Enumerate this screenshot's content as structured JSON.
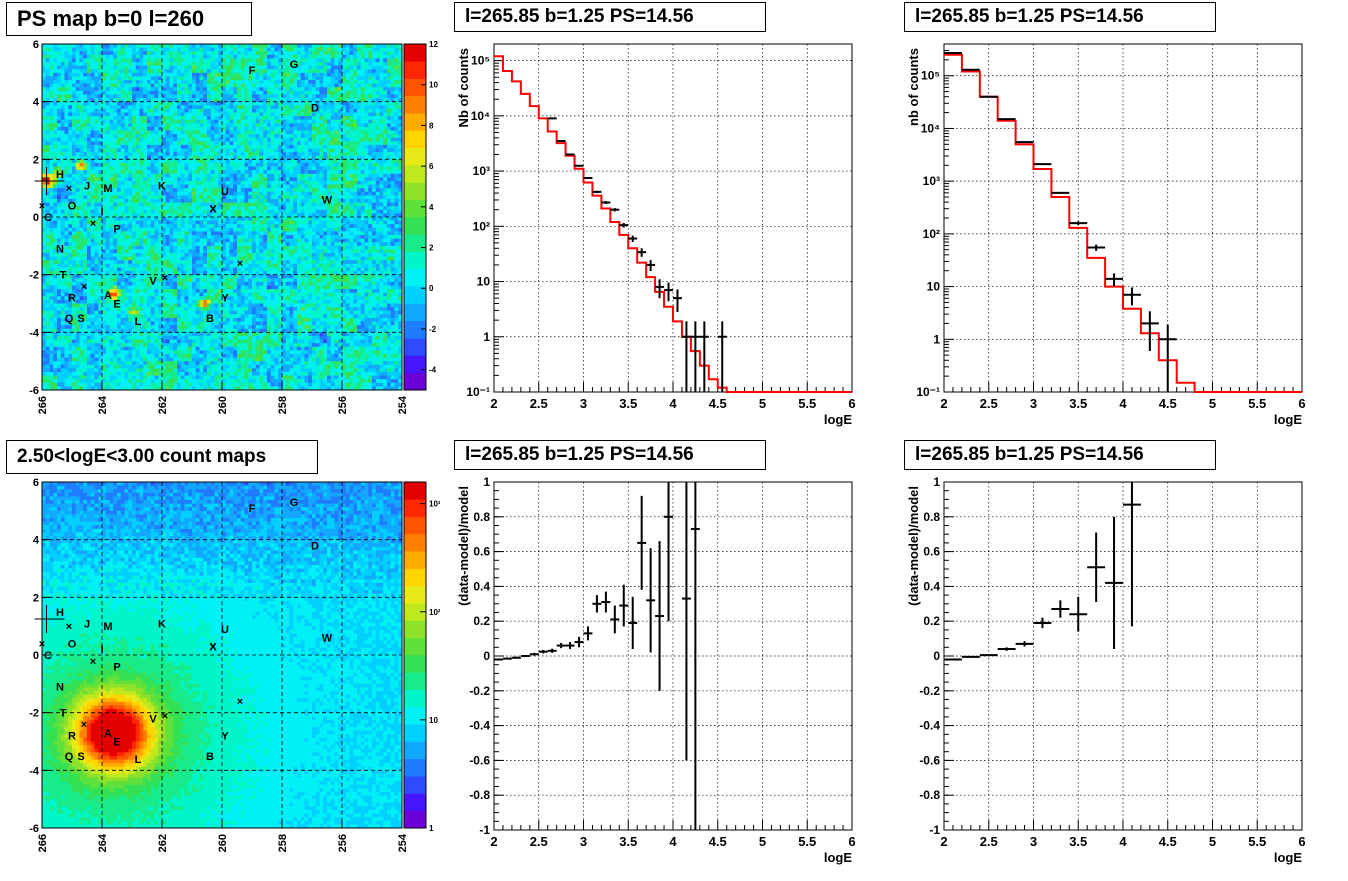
{
  "panels": {
    "ps_map": {
      "title": "PS map b=0 l=260"
    },
    "count_map": {
      "title": "2.50<logE<3.00 count maps"
    },
    "spec1": {
      "title": "l=265.85 b=1.25 PS=14.56"
    },
    "spec2": {
      "title": "l=265.85 b=1.25 PS=14.56"
    },
    "res1": {
      "title": "l=265.85 b=1.25 PS=14.56"
    },
    "res2": {
      "title": "l=265.85 b=1.25 PS=14.56"
    }
  },
  "colors": {
    "model": "#ff0000",
    "data": "#000000",
    "grid": "#000000"
  },
  "chart_data": [
    {
      "id": "ps_map",
      "type": "heatmap",
      "title": "PS map b=0 l=260",
      "xlim": [
        266,
        254
      ],
      "ylim": [
        -6,
        6
      ],
      "xticks": [
        "266",
        "264",
        "262",
        "260",
        "258",
        "256",
        "254"
      ],
      "yticks": [
        "-6",
        "-4",
        "-2",
        "0",
        "2",
        "4",
        "6"
      ],
      "zlim": [
        -5,
        12
      ],
      "zticks": [
        "-4",
        "-2",
        "0",
        "2",
        "4",
        "6",
        "8",
        "10",
        "12"
      ],
      "hotspots": [
        {
          "l": 265.85,
          "b": 1.25,
          "v": 12
        },
        {
          "l": 264.7,
          "b": 1.8,
          "v": 10
        },
        {
          "l": 263.6,
          "b": -2.7,
          "v": 10
        },
        {
          "l": 260.6,
          "b": -3.0,
          "v": 10
        },
        {
          "l": 262.9,
          "b": -3.3,
          "v": 7
        },
        {
          "l": 265.5,
          "b": 1.5,
          "v": 6
        }
      ],
      "sources": [
        {
          "name": "F",
          "l": 259.0,
          "b": 5.1
        },
        {
          "name": "G",
          "l": 257.6,
          "b": 5.3
        },
        {
          "name": "D",
          "l": 256.9,
          "b": 3.8
        },
        {
          "name": "H",
          "l": 265.4,
          "b": 1.5
        },
        {
          "name": "J",
          "l": 264.5,
          "b": 1.1
        },
        {
          "name": "M",
          "l": 263.8,
          "b": 1.0
        },
        {
          "name": "K",
          "l": 262.0,
          "b": 1.1
        },
        {
          "name": "U",
          "l": 259.9,
          "b": 0.9
        },
        {
          "name": "W",
          "l": 256.5,
          "b": 0.6
        },
        {
          "name": "O",
          "l": 265.0,
          "b": 0.4
        },
        {
          "name": "I",
          "l": 264.0,
          "b": 0.2
        },
        {
          "name": "X",
          "l": 260.3,
          "b": 0.3
        },
        {
          "name": "C",
          "l": 265.8,
          "b": 0.0
        },
        {
          "name": "P",
          "l": 263.5,
          "b": -0.4
        },
        {
          "name": "N",
          "l": 265.4,
          "b": -1.1
        },
        {
          "name": "T",
          "l": 265.3,
          "b": -2.0
        },
        {
          "name": "V",
          "l": 262.3,
          "b": -2.2
        },
        {
          "name": "R",
          "l": 265.0,
          "b": -2.8
        },
        {
          "name": "A",
          "l": 263.8,
          "b": -2.7
        },
        {
          "name": "Y",
          "l": 259.9,
          "b": -2.8
        },
        {
          "name": "E",
          "l": 263.5,
          "b": -3.0
        },
        {
          "name": "Q",
          "l": 265.1,
          "b": -3.5
        },
        {
          "name": "S",
          "l": 264.7,
          "b": -3.5
        },
        {
          "name": "L",
          "l": 262.8,
          "b": -3.6
        },
        {
          "name": "B",
          "l": 260.4,
          "b": -3.5
        }
      ],
      "markers": [
        {
          "l": 266.0,
          "b": 0.4
        },
        {
          "l": 265.1,
          "b": 1.0
        },
        {
          "l": 264.3,
          "b": -0.2
        },
        {
          "l": 264.6,
          "b": -2.4
        },
        {
          "l": 261.9,
          "b": -2.1
        },
        {
          "l": 260.3,
          "b": 0.3
        },
        {
          "l": 259.4,
          "b": -1.6
        }
      ],
      "crosshair": {
        "l": 265.85,
        "b": 1.25
      }
    },
    {
      "id": "count_map",
      "type": "heatmap",
      "title": "2.50<logE<3.00 count maps",
      "xlim": [
        266,
        254
      ],
      "ylim": [
        -6,
        6
      ],
      "xticks": [
        "266",
        "264",
        "262",
        "260",
        "258",
        "256",
        "254"
      ],
      "yticks": [
        "-6",
        "-4",
        "-2",
        "0",
        "2",
        "4",
        "6"
      ],
      "zscale": "log",
      "zticks": [
        "1",
        "10",
        "10²",
        "10³"
      ],
      "peak": {
        "l": 263.6,
        "b": -2.7
      },
      "sources": "same as PS map"
    },
    {
      "id": "spec1",
      "type": "line",
      "title": "l=265.85 b=1.25 PS=14.56",
      "xlabel": "logE",
      "ylabel": "Nb of counts",
      "yscale": "log",
      "xlim": [
        2,
        6
      ],
      "ylim": [
        0.1,
        200000
      ],
      "xticks": [
        "2",
        "2.5",
        "3",
        "3.5",
        "4",
        "4.5",
        "5",
        "5.5",
        "6"
      ],
      "yticks": [
        {
          "v": 0.1,
          "t": "10⁻¹"
        },
        {
          "v": 1,
          "t": "1"
        },
        {
          "v": 10,
          "t": "10"
        },
        {
          "v": 100,
          "t": "10²"
        },
        {
          "v": 1000,
          "t": "10³"
        },
        {
          "v": 10000,
          "t": "10⁴"
        },
        {
          "v": 100000,
          "t": "10⁵"
        }
      ],
      "bin_width": 0.1,
      "model": [
        {
          "x": 2.0,
          "y": 120000
        },
        {
          "x": 2.1,
          "y": 65000
        },
        {
          "x": 2.2,
          "y": 42000
        },
        {
          "x": 2.3,
          "y": 25000
        },
        {
          "x": 2.4,
          "y": 15000
        },
        {
          "x": 2.5,
          "y": 9000
        },
        {
          "x": 2.6,
          "y": 5200
        },
        {
          "x": 2.7,
          "y": 3200
        },
        {
          "x": 2.8,
          "y": 1900
        },
        {
          "x": 2.9,
          "y": 1100
        },
        {
          "x": 3.0,
          "y": 620
        },
        {
          "x": 3.1,
          "y": 360
        },
        {
          "x": 3.2,
          "y": 210
        },
        {
          "x": 3.3,
          "y": 120
        },
        {
          "x": 3.4,
          "y": 70
        },
        {
          "x": 3.5,
          "y": 40
        },
        {
          "x": 3.6,
          "y": 22
        },
        {
          "x": 3.7,
          "y": 12
        },
        {
          "x": 3.8,
          "y": 6.5
        },
        {
          "x": 3.9,
          "y": 3.5
        },
        {
          "x": 4.0,
          "y": 1.9
        },
        {
          "x": 4.1,
          "y": 1.0
        },
        {
          "x": 4.2,
          "y": 0.55
        },
        {
          "x": 4.3,
          "y": 0.3
        },
        {
          "x": 4.4,
          "y": 0.17
        },
        {
          "x": 4.5,
          "y": 0.12
        },
        {
          "x": 4.6,
          "y": 0.1
        },
        {
          "x": 4.7,
          "y": 0.1
        }
      ],
      "data": [
        {
          "x": 2.65,
          "y": 9000,
          "err": 100
        },
        {
          "x": 2.75,
          "y": 3500,
          "err": 60
        },
        {
          "x": 2.85,
          "y": 2000,
          "err": 45
        },
        {
          "x": 2.95,
          "y": 1250,
          "err": 35
        },
        {
          "x": 3.05,
          "y": 750,
          "err": 27
        },
        {
          "x": 3.15,
          "y": 420,
          "err": 20
        },
        {
          "x": 3.25,
          "y": 270,
          "err": 16
        },
        {
          "x": 3.35,
          "y": 200,
          "err": 14
        },
        {
          "x": 3.45,
          "y": 105,
          "err": 10
        },
        {
          "x": 3.55,
          "y": 60,
          "err": 8
        },
        {
          "x": 3.65,
          "y": 34,
          "err": 6
        },
        {
          "x": 3.75,
          "y": 20,
          "err": 4.5
        },
        {
          "x": 3.85,
          "y": 8,
          "err": 3
        },
        {
          "x": 3.95,
          "y": 7,
          "err": 2.6
        },
        {
          "x": 4.05,
          "y": 5,
          "err": 2.2
        },
        {
          "x": 4.15,
          "y": 1,
          "err": 0.9
        },
        {
          "x": 4.25,
          "y": 1,
          "err": 0.9
        },
        {
          "x": 4.35,
          "y": 1,
          "err": 0.9
        },
        {
          "x": 4.55,
          "y": 1,
          "err": 0.9
        }
      ]
    },
    {
      "id": "spec2",
      "type": "line",
      "title": "l=265.85 b=1.25 PS=14.56",
      "xlabel": "logE",
      "ylabel": "nb of counts",
      "yscale": "log",
      "xlim": [
        2,
        6
      ],
      "ylim": [
        0.1,
        400000
      ],
      "xticks": [
        "2",
        "2.5",
        "3",
        "3.5",
        "4",
        "4.5",
        "5",
        "5.5",
        "6"
      ],
      "yticks": [
        {
          "v": 0.1,
          "t": "10⁻¹"
        },
        {
          "v": 1,
          "t": "1"
        },
        {
          "v": 10,
          "t": "10"
        },
        {
          "v": 100,
          "t": "10²"
        },
        {
          "v": 1000,
          "t": "10³"
        },
        {
          "v": 10000,
          "t": "10⁴"
        },
        {
          "v": 100000,
          "t": "10⁵"
        }
      ],
      "bin_width": 0.2,
      "model": [
        {
          "x": 2.0,
          "y": 250000
        },
        {
          "x": 2.2,
          "y": 120000
        },
        {
          "x": 2.4,
          "y": 40000
        },
        {
          "x": 2.6,
          "y": 14000
        },
        {
          "x": 2.8,
          "y": 5000
        },
        {
          "x": 3.0,
          "y": 1700
        },
        {
          "x": 3.2,
          "y": 500
        },
        {
          "x": 3.4,
          "y": 130
        },
        {
          "x": 3.6,
          "y": 35
        },
        {
          "x": 3.8,
          "y": 10
        },
        {
          "x": 4.0,
          "y": 3.8
        },
        {
          "x": 4.2,
          "y": 1.3
        },
        {
          "x": 4.4,
          "y": 0.4
        },
        {
          "x": 4.6,
          "y": 0.15
        },
        {
          "x": 4.8,
          "y": 0.1
        },
        {
          "x": 5.0,
          "y": 0.1
        }
      ],
      "data": [
        {
          "x": 2.1,
          "y": 270000,
          "err": 500
        },
        {
          "x": 2.3,
          "y": 130000,
          "err": 360
        },
        {
          "x": 2.5,
          "y": 40000,
          "err": 200
        },
        {
          "x": 2.7,
          "y": 15000,
          "err": 120
        },
        {
          "x": 2.9,
          "y": 5500,
          "err": 75
        },
        {
          "x": 3.1,
          "y": 2100,
          "err": 46
        },
        {
          "x": 3.3,
          "y": 600,
          "err": 25
        },
        {
          "x": 3.5,
          "y": 160,
          "err": 13
        },
        {
          "x": 3.7,
          "y": 55,
          "err": 7.5
        },
        {
          "x": 3.9,
          "y": 14,
          "err": 3.8
        },
        {
          "x": 4.1,
          "y": 7,
          "err": 2.6
        },
        {
          "x": 4.3,
          "y": 2,
          "err": 1.4
        },
        {
          "x": 4.5,
          "y": 1,
          "err": 0.9
        }
      ]
    },
    {
      "id": "res1",
      "type": "scatter",
      "title": "l=265.85 b=1.25 PS=14.56",
      "xlabel": "logE",
      "ylabel": "(data-model)/model",
      "xlim": [
        2,
        6
      ],
      "ylim": [
        -1,
        1
      ],
      "xticks": [
        "2",
        "2.5",
        "3",
        "3.5",
        "4",
        "4.5",
        "5",
        "5.5",
        "6"
      ],
      "yticks": [
        "-1",
        "-0.8",
        "-0.6",
        "-0.4",
        "-0.2",
        "0",
        "0.2",
        "0.4",
        "0.6",
        "0.8",
        "1"
      ],
      "bin_width": 0.1,
      "data": [
        {
          "x": 2.05,
          "y": -0.02,
          "err": 0.005
        },
        {
          "x": 2.15,
          "y": -0.015,
          "err": 0.005
        },
        {
          "x": 2.25,
          "y": -0.01,
          "err": 0.005
        },
        {
          "x": 2.35,
          "y": 0.0,
          "err": 0.006
        },
        {
          "x": 2.45,
          "y": 0.01,
          "err": 0.008
        },
        {
          "x": 2.55,
          "y": 0.025,
          "err": 0.01
        },
        {
          "x": 2.65,
          "y": 0.03,
          "err": 0.012
        },
        {
          "x": 2.75,
          "y": 0.06,
          "err": 0.015
        },
        {
          "x": 2.85,
          "y": 0.06,
          "err": 0.02
        },
        {
          "x": 2.95,
          "y": 0.08,
          "err": 0.03
        },
        {
          "x": 3.05,
          "y": 0.13,
          "err": 0.04
        },
        {
          "x": 3.15,
          "y": 0.3,
          "err": 0.05
        },
        {
          "x": 3.25,
          "y": 0.31,
          "err": 0.06
        },
        {
          "x": 3.35,
          "y": 0.21,
          "err": 0.08
        },
        {
          "x": 3.45,
          "y": 0.29,
          "err": 0.12
        },
        {
          "x": 3.55,
          "y": 0.19,
          "err": 0.15
        },
        {
          "x": 3.65,
          "y": 0.65,
          "err": 0.27
        },
        {
          "x": 3.75,
          "y": 0.32,
          "err": 0.3
        },
        {
          "x": 3.85,
          "y": 0.23,
          "err": 0.43
        },
        {
          "x": 3.95,
          "y": 0.8,
          "err": 0.6
        },
        {
          "x": 4.15,
          "y": 0.33,
          "err": 0.93
        },
        {
          "x": 4.25,
          "y": 0.73,
          "err": 1.8
        }
      ]
    },
    {
      "id": "res2",
      "type": "scatter",
      "title": "l=265.85 b=1.25 PS=14.56",
      "xlabel": "logE",
      "ylabel": "(data-model)/model",
      "xlim": [
        2,
        6
      ],
      "ylim": [
        -1,
        1
      ],
      "xticks": [
        "2",
        "2.5",
        "3",
        "3.5",
        "4",
        "4.5",
        "5",
        "5.5",
        "6"
      ],
      "yticks": [
        "-1",
        "-0.8",
        "-0.6",
        "-0.4",
        "-0.2",
        "0",
        "0.2",
        "0.4",
        "0.6",
        "0.8",
        "1"
      ],
      "bin_width": 0.2,
      "data": [
        {
          "x": 2.1,
          "y": -0.02,
          "err": 0.004
        },
        {
          "x": 2.3,
          "y": -0.005,
          "err": 0.005
        },
        {
          "x": 2.5,
          "y": 0.005,
          "err": 0.006
        },
        {
          "x": 2.7,
          "y": 0.04,
          "err": 0.01
        },
        {
          "x": 2.9,
          "y": 0.07,
          "err": 0.015
        },
        {
          "x": 3.1,
          "y": 0.19,
          "err": 0.03
        },
        {
          "x": 3.3,
          "y": 0.27,
          "err": 0.05
        },
        {
          "x": 3.5,
          "y": 0.24,
          "err": 0.1
        },
        {
          "x": 3.7,
          "y": 0.51,
          "err": 0.2
        },
        {
          "x": 3.9,
          "y": 0.42,
          "err": 0.38
        },
        {
          "x": 4.1,
          "y": 0.87,
          "err": 0.7
        }
      ]
    }
  ]
}
